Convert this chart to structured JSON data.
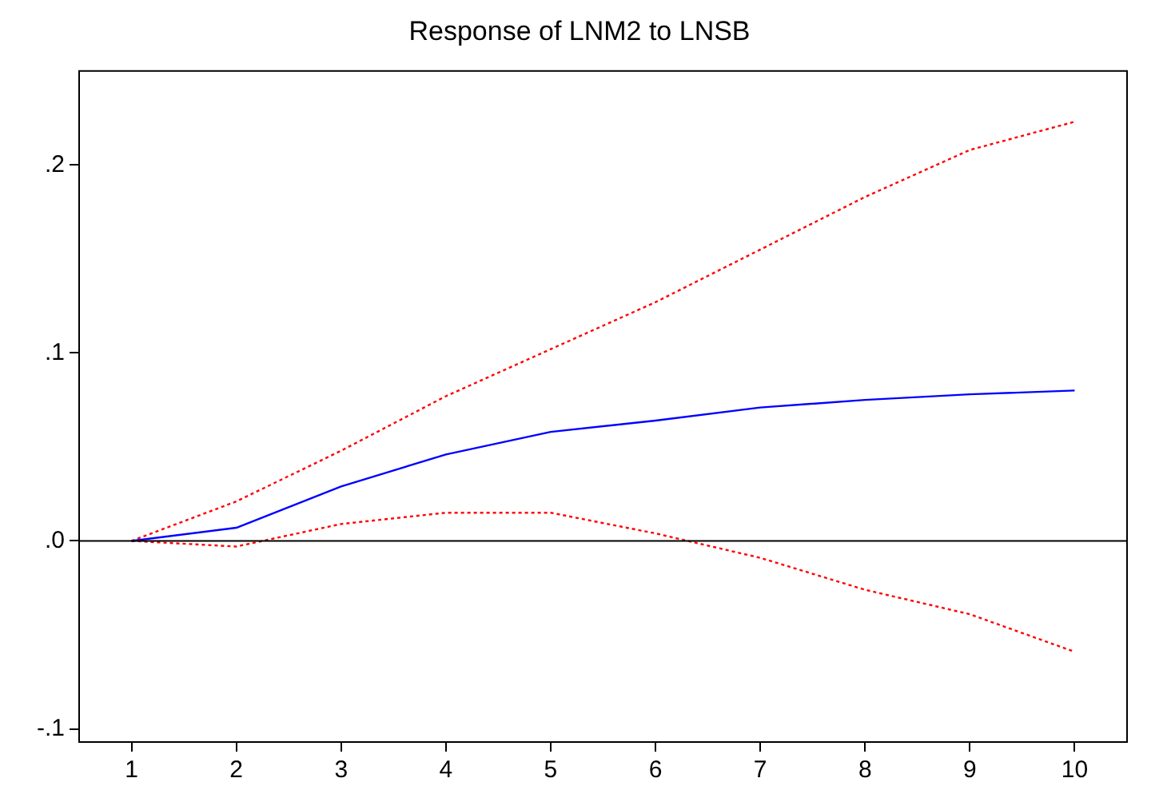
{
  "chart_data": {
    "type": "line",
    "title": "Response of LNM2 to LNSB",
    "x": [
      1,
      2,
      3,
      4,
      5,
      6,
      7,
      8,
      9,
      10
    ],
    "series": [
      {
        "color": "#0000ff",
        "values": [
          0.0,
          0.007,
          0.029,
          0.046,
          0.058,
          0.064,
          0.071,
          0.075,
          0.078,
          0.08
        ],
        "line_style": "solid"
      },
      {
        "color": "#ff0000",
        "values": [
          0.0,
          0.021,
          0.048,
          0.077,
          0.102,
          0.127,
          0.155,
          0.183,
          0.208,
          0.223
        ],
        "line_style": "dotted"
      },
      {
        "color": "#ff0000",
        "values": [
          0.0,
          -0.003,
          0.009,
          0.015,
          0.015,
          0.004,
          -0.009,
          -0.026,
          -0.039,
          -0.059
        ],
        "line_style": "dotted"
      }
    ],
    "xlim": [
      0.5,
      10.5
    ],
    "xticks": [
      1,
      2,
      3,
      4,
      5,
      6,
      7,
      8,
      9,
      10
    ],
    "ylim": [
      -0.107,
      0.25
    ],
    "yticks": [
      {
        "value": -0.1,
        "label": "-.1"
      },
      {
        "value": 0,
        "label": ".0"
      },
      {
        "value": 0.1,
        "label": ".1"
      },
      {
        "value": 0.2,
        "label": ".2"
      }
    ],
    "ref_lines": [
      {
        "axis": "y",
        "value": 0,
        "color": "#000000"
      }
    ],
    "grid": false,
    "legend": false,
    "marker": "none"
  }
}
